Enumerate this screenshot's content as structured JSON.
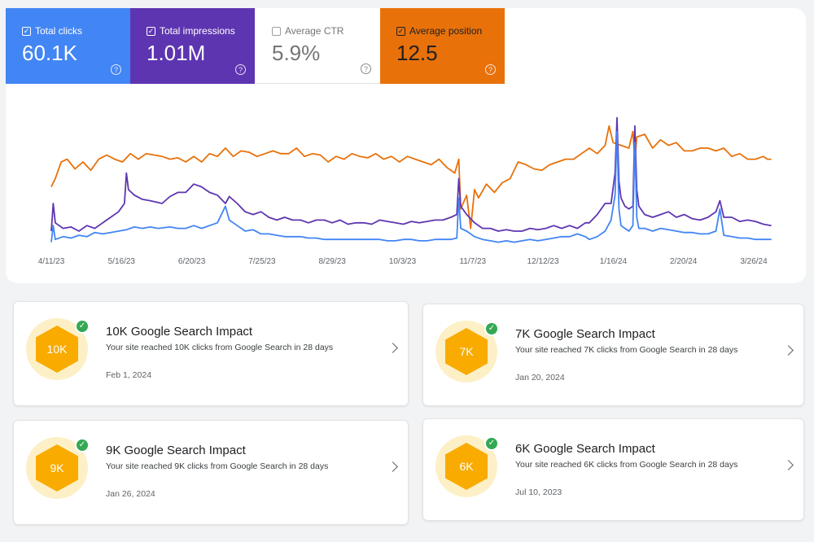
{
  "metrics": {
    "total_clicks": {
      "label": "Total clicks",
      "value": "60.1K",
      "checked": true
    },
    "total_impressions": {
      "label": "Total impressions",
      "value": "1.01M",
      "checked": true
    },
    "average_ctr": {
      "label": "Average CTR",
      "value": "5.9%",
      "checked": false
    },
    "average_position": {
      "label": "Average position",
      "value": "12.5",
      "checked": true
    },
    "check_glyph": "✓",
    "help_glyph": "?"
  },
  "chart_data": {
    "type": "line",
    "x_tick_labels": [
      "4/11/23",
      "5/16/23",
      "6/20/23",
      "7/25/23",
      "8/29/23",
      "10/3/23",
      "11/7/23",
      "12/12/23",
      "1/16/24",
      "2/20/24",
      "3/26/24"
    ],
    "x_range_days": [
      0,
      365
    ],
    "y_range": [
      0,
      100
    ],
    "y_axis_visible": false,
    "grid": false,
    "colors": {
      "clicks": "#4285f4",
      "impressions": "#5e35b1",
      "position": "#e8710a"
    },
    "series": [
      {
        "name": "Average position",
        "key": "position",
        "points": [
          [
            0,
            42
          ],
          [
            2,
            48
          ],
          [
            5,
            60
          ],
          [
            8,
            62
          ],
          [
            12,
            55
          ],
          [
            16,
            60
          ],
          [
            20,
            54
          ],
          [
            24,
            62
          ],
          [
            28,
            65
          ],
          [
            32,
            62
          ],
          [
            36,
            60
          ],
          [
            40,
            66
          ],
          [
            44,
            62
          ],
          [
            48,
            66
          ],
          [
            52,
            65
          ],
          [
            56,
            64
          ],
          [
            60,
            62
          ],
          [
            64,
            63
          ],
          [
            68,
            60
          ],
          [
            72,
            64
          ],
          [
            76,
            60
          ],
          [
            80,
            66
          ],
          [
            84,
            64
          ],
          [
            88,
            70
          ],
          [
            92,
            64
          ],
          [
            96,
            68
          ],
          [
            100,
            67
          ],
          [
            104,
            64
          ],
          [
            108,
            66
          ],
          [
            112,
            68
          ],
          [
            116,
            66
          ],
          [
            120,
            66
          ],
          [
            124,
            70
          ],
          [
            128,
            64
          ],
          [
            132,
            66
          ],
          [
            136,
            65
          ],
          [
            140,
            60
          ],
          [
            144,
            64
          ],
          [
            148,
            62
          ],
          [
            152,
            66
          ],
          [
            156,
            64
          ],
          [
            160,
            63
          ],
          [
            164,
            66
          ],
          [
            168,
            62
          ],
          [
            172,
            64
          ],
          [
            176,
            60
          ],
          [
            180,
            64
          ],
          [
            184,
            62
          ],
          [
            188,
            60
          ],
          [
            192,
            58
          ],
          [
            196,
            62
          ],
          [
            200,
            56
          ],
          [
            204,
            52
          ],
          [
            206,
            62
          ],
          [
            207,
            26
          ],
          [
            210,
            36
          ],
          [
            212,
            12
          ],
          [
            214,
            40
          ],
          [
            216,
            34
          ],
          [
            220,
            44
          ],
          [
            224,
            38
          ],
          [
            228,
            45
          ],
          [
            232,
            48
          ],
          [
            236,
            60
          ],
          [
            240,
            58
          ],
          [
            244,
            55
          ],
          [
            248,
            54
          ],
          [
            252,
            58
          ],
          [
            256,
            60
          ],
          [
            260,
            62
          ],
          [
            264,
            62
          ],
          [
            268,
            66
          ],
          [
            272,
            70
          ],
          [
            276,
            66
          ],
          [
            280,
            72
          ],
          [
            282,
            86
          ],
          [
            284,
            74
          ],
          [
            288,
            72
          ],
          [
            292,
            70
          ],
          [
            294,
            82
          ],
          [
            295,
            62
          ],
          [
            296,
            78
          ],
          [
            300,
            80
          ],
          [
            304,
            70
          ],
          [
            308,
            76
          ],
          [
            312,
            72
          ],
          [
            316,
            74
          ],
          [
            320,
            68
          ],
          [
            324,
            68
          ],
          [
            328,
            70
          ],
          [
            332,
            70
          ],
          [
            336,
            68
          ],
          [
            340,
            70
          ],
          [
            344,
            64
          ],
          [
            348,
            66
          ],
          [
            352,
            62
          ],
          [
            356,
            62
          ],
          [
            360,
            64
          ],
          [
            362,
            62
          ],
          [
            364,
            62
          ]
        ]
      },
      {
        "name": "Total impressions",
        "key": "impressions",
        "points": [
          [
            0,
            10
          ],
          [
            1,
            30
          ],
          [
            2,
            16
          ],
          [
            6,
            12
          ],
          [
            10,
            13
          ],
          [
            14,
            10
          ],
          [
            18,
            14
          ],
          [
            22,
            12
          ],
          [
            26,
            16
          ],
          [
            28,
            18
          ],
          [
            30,
            20
          ],
          [
            34,
            24
          ],
          [
            37,
            30
          ],
          [
            38,
            52
          ],
          [
            39,
            40
          ],
          [
            42,
            36
          ],
          [
            46,
            33
          ],
          [
            50,
            32
          ],
          [
            56,
            30
          ],
          [
            60,
            35
          ],
          [
            64,
            38
          ],
          [
            68,
            38
          ],
          [
            72,
            44
          ],
          [
            76,
            42
          ],
          [
            80,
            38
          ],
          [
            84,
            36
          ],
          [
            88,
            30
          ],
          [
            90,
            35
          ],
          [
            94,
            30
          ],
          [
            98,
            24
          ],
          [
            102,
            22
          ],
          [
            106,
            24
          ],
          [
            110,
            20
          ],
          [
            114,
            18
          ],
          [
            118,
            20
          ],
          [
            122,
            18
          ],
          [
            126,
            18
          ],
          [
            130,
            16
          ],
          [
            134,
            18
          ],
          [
            138,
            18
          ],
          [
            142,
            16
          ],
          [
            146,
            18
          ],
          [
            150,
            15
          ],
          [
            154,
            16
          ],
          [
            158,
            16
          ],
          [
            162,
            15
          ],
          [
            166,
            18
          ],
          [
            170,
            17
          ],
          [
            174,
            16
          ],
          [
            178,
            15
          ],
          [
            182,
            17
          ],
          [
            186,
            16
          ],
          [
            190,
            17
          ],
          [
            194,
            18
          ],
          [
            198,
            18
          ],
          [
            202,
            20
          ],
          [
            205,
            22
          ],
          [
            206,
            48
          ],
          [
            207,
            28
          ],
          [
            210,
            22
          ],
          [
            214,
            16
          ],
          [
            218,
            12
          ],
          [
            222,
            12
          ],
          [
            226,
            10
          ],
          [
            230,
            11
          ],
          [
            234,
            10
          ],
          [
            238,
            10
          ],
          [
            242,
            12
          ],
          [
            246,
            11
          ],
          [
            250,
            12
          ],
          [
            254,
            14
          ],
          [
            258,
            12
          ],
          [
            262,
            14
          ],
          [
            266,
            12
          ],
          [
            270,
            16
          ],
          [
            272,
            16
          ],
          [
            276,
            22
          ],
          [
            280,
            30
          ],
          [
            283,
            30
          ],
          [
            285,
            52
          ],
          [
            286,
            92
          ],
          [
            287,
            46
          ],
          [
            288,
            34
          ],
          [
            290,
            28
          ],
          [
            292,
            26
          ],
          [
            294,
            28
          ],
          [
            295,
            86
          ],
          [
            296,
            40
          ],
          [
            297,
            28
          ],
          [
            300,
            22
          ],
          [
            304,
            20
          ],
          [
            308,
            22
          ],
          [
            312,
            24
          ],
          [
            316,
            20
          ],
          [
            320,
            22
          ],
          [
            324,
            19
          ],
          [
            328,
            18
          ],
          [
            332,
            20
          ],
          [
            336,
            24
          ],
          [
            338,
            32
          ],
          [
            340,
            20
          ],
          [
            344,
            20
          ],
          [
            348,
            17
          ],
          [
            352,
            18
          ],
          [
            356,
            17
          ],
          [
            360,
            15
          ],
          [
            364,
            14
          ]
        ]
      },
      {
        "name": "Total clicks",
        "key": "clicks",
        "points": [
          [
            0,
            2
          ],
          [
            1,
            14
          ],
          [
            2,
            4
          ],
          [
            6,
            6
          ],
          [
            10,
            5
          ],
          [
            14,
            7
          ],
          [
            18,
            6
          ],
          [
            22,
            9
          ],
          [
            26,
            8
          ],
          [
            30,
            9
          ],
          [
            34,
            10
          ],
          [
            38,
            11
          ],
          [
            42,
            13
          ],
          [
            46,
            12
          ],
          [
            50,
            13
          ],
          [
            54,
            12
          ],
          [
            60,
            13
          ],
          [
            64,
            12
          ],
          [
            68,
            12
          ],
          [
            72,
            14
          ],
          [
            76,
            12
          ],
          [
            80,
            14
          ],
          [
            84,
            16
          ],
          [
            88,
            28
          ],
          [
            90,
            18
          ],
          [
            94,
            14
          ],
          [
            98,
            10
          ],
          [
            102,
            11
          ],
          [
            106,
            8
          ],
          [
            110,
            8
          ],
          [
            114,
            7
          ],
          [
            118,
            6
          ],
          [
            122,
            6
          ],
          [
            126,
            6
          ],
          [
            130,
            5
          ],
          [
            134,
            5
          ],
          [
            138,
            4
          ],
          [
            142,
            4
          ],
          [
            146,
            4
          ],
          [
            150,
            4
          ],
          [
            154,
            4
          ],
          [
            158,
            4
          ],
          [
            162,
            4
          ],
          [
            166,
            4
          ],
          [
            170,
            3
          ],
          [
            174,
            3
          ],
          [
            178,
            4
          ],
          [
            182,
            4
          ],
          [
            186,
            3
          ],
          [
            190,
            3
          ],
          [
            194,
            4
          ],
          [
            198,
            4
          ],
          [
            202,
            4
          ],
          [
            205,
            5
          ],
          [
            206,
            34
          ],
          [
            207,
            12
          ],
          [
            210,
            10
          ],
          [
            214,
            6
          ],
          [
            218,
            4
          ],
          [
            222,
            3
          ],
          [
            226,
            2
          ],
          [
            230,
            3
          ],
          [
            234,
            2
          ],
          [
            238,
            3
          ],
          [
            242,
            4
          ],
          [
            246,
            3
          ],
          [
            250,
            4
          ],
          [
            254,
            5
          ],
          [
            258,
            6
          ],
          [
            262,
            6
          ],
          [
            266,
            8
          ],
          [
            270,
            6
          ],
          [
            272,
            4
          ],
          [
            276,
            6
          ],
          [
            280,
            10
          ],
          [
            283,
            18
          ],
          [
            285,
            36
          ],
          [
            286,
            82
          ],
          [
            287,
            26
          ],
          [
            288,
            14
          ],
          [
            290,
            12
          ],
          [
            292,
            10
          ],
          [
            294,
            14
          ],
          [
            295,
            74
          ],
          [
            296,
            20
          ],
          [
            297,
            12
          ],
          [
            300,
            12
          ],
          [
            304,
            10
          ],
          [
            308,
            12
          ],
          [
            312,
            11
          ],
          [
            316,
            10
          ],
          [
            320,
            9
          ],
          [
            324,
            9
          ],
          [
            328,
            8
          ],
          [
            332,
            8
          ],
          [
            336,
            10
          ],
          [
            338,
            26
          ],
          [
            340,
            7
          ],
          [
            344,
            6
          ],
          [
            348,
            5
          ],
          [
            352,
            5
          ],
          [
            356,
            4
          ],
          [
            360,
            4
          ],
          [
            364,
            4
          ]
        ]
      }
    ]
  },
  "achievements": {
    "check_glyph": "✓",
    "items": [
      {
        "badge": "10K",
        "title": "10K Google Search Impact",
        "description": "Your site reached 10K clicks from Google Search in 28 days",
        "date": "Feb 1, 2024"
      },
      {
        "badge": "9K",
        "title": "9K Google Search Impact",
        "description": "Your site reached 9K clicks from Google Search in 28 days",
        "date": "Jan 26, 2024"
      },
      {
        "badge": "7K",
        "title": "7K Google Search Impact",
        "description": "Your site reached 7K clicks from Google Search in 28 days",
        "date": "Jan 20, 2024"
      },
      {
        "badge": "6K",
        "title": "6K Google Search Impact",
        "description": "Your site reached 6K clicks from Google Search in 28 days",
        "date": "Jul 10, 2023"
      }
    ]
  }
}
